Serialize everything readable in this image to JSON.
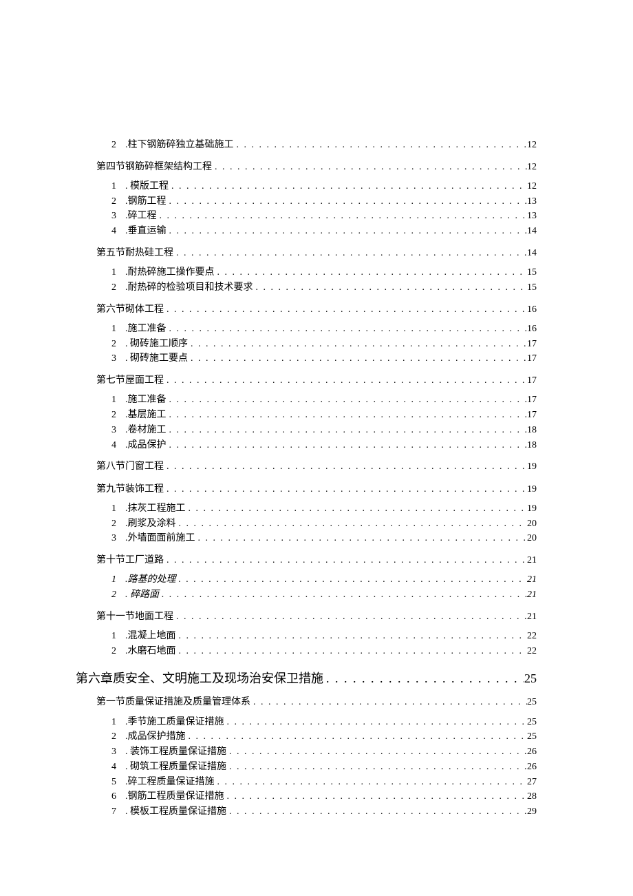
{
  "toc": [
    {
      "level": "item",
      "indent": 1,
      "num": "2",
      "label": ".柱下钢筋碎独立基础施工",
      "page": "12",
      "italic": false
    },
    {
      "level": "section",
      "indent": 0,
      "num": "",
      "label": "第四节钢筋碎框架结构工程",
      "page": "12",
      "italic": false
    },
    {
      "level": "item",
      "indent": 1,
      "num": "1",
      "label": ". 模版工程",
      "page": "12",
      "italic": false
    },
    {
      "level": "item",
      "indent": 1,
      "num": "2",
      "label": ".钢筋工程",
      "page": "13",
      "italic": false
    },
    {
      "level": "item",
      "indent": 1,
      "num": "3",
      "label": ".碎工程",
      "page": "13",
      "italic": false
    },
    {
      "level": "item",
      "indent": 1,
      "num": "4",
      "label": ".垂直运输",
      "page": "14",
      "italic": false
    },
    {
      "level": "section",
      "indent": 0,
      "num": "",
      "label": "第五节耐热硅工程",
      "page": "14",
      "italic": false
    },
    {
      "level": "item",
      "indent": 1,
      "num": "1",
      "label": ".耐热碎施工操作要点",
      "page": "15",
      "italic": false
    },
    {
      "level": "item",
      "indent": 1,
      "num": "2",
      "label": ".耐热碎的检验项目和技术要求",
      "page": "15",
      "italic": false
    },
    {
      "level": "section",
      "indent": 0,
      "num": "",
      "label": "第六节砌体工程",
      "page": "16",
      "italic": false
    },
    {
      "level": "item",
      "indent": 1,
      "num": "1",
      "label": ".施工准备",
      "page": "16",
      "italic": false
    },
    {
      "level": "item",
      "indent": 1,
      "num": "2",
      "label": ". 砌砖施工顺序",
      "page": "17",
      "italic": false
    },
    {
      "level": "item",
      "indent": 1,
      "num": "3",
      "label": ". 砌砖施工要点",
      "page": "17",
      "italic": false
    },
    {
      "level": "section",
      "indent": 0,
      "num": "",
      "label": "第七节屋面工程",
      "page": "17",
      "italic": false
    },
    {
      "level": "item",
      "indent": 1,
      "num": "1",
      "label": ".施工准备",
      "page": "17",
      "italic": false
    },
    {
      "level": "item",
      "indent": 1,
      "num": "2",
      "label": ".基层施工",
      "page": "17",
      "italic": false
    },
    {
      "level": "item",
      "indent": 1,
      "num": "3",
      "label": ".卷材施工",
      "page": "18",
      "italic": false
    },
    {
      "level": "item",
      "indent": 1,
      "num": "4",
      "label": ".成品保护",
      "page": "18",
      "italic": false
    },
    {
      "level": "section",
      "indent": 0,
      "num": "",
      "label": "第八节门窗工程",
      "page": "19",
      "italic": false
    },
    {
      "level": "section",
      "indent": 0,
      "num": "",
      "label": "第九节装饰工程",
      "page": "19",
      "italic": false
    },
    {
      "level": "item",
      "indent": 1,
      "num": "1",
      "label": ".抹灰工程施工",
      "page": "19",
      "italic": false
    },
    {
      "level": "item",
      "indent": 1,
      "num": "2",
      "label": ".刷浆及涂料",
      "page": "20",
      "italic": false
    },
    {
      "level": "item",
      "indent": 1,
      "num": "3",
      "label": ".外墙面面前施工",
      "page": "20",
      "italic": false
    },
    {
      "level": "section",
      "indent": 0,
      "num": "",
      "label": "第十节工厂道路",
      "page": "21",
      "italic": false
    },
    {
      "level": "item",
      "indent": 1,
      "num": "1",
      "label": ".路基的处理",
      "page": "21",
      "italic": true
    },
    {
      "level": "item",
      "indent": 1,
      "num": "2",
      "label": ". 碎路面",
      "page": "21",
      "italic": true
    },
    {
      "level": "section",
      "indent": 0,
      "num": "",
      "label": "第十一节地面工程",
      "page": "21",
      "italic": false
    },
    {
      "level": "item",
      "indent": 1,
      "num": "1",
      "label": ".混凝上地面",
      "page": "22",
      "italic": false
    },
    {
      "level": "item",
      "indent": 1,
      "num": "2",
      "label": ".水磨石地面",
      "page": "22",
      "italic": false
    },
    {
      "level": "chapter",
      "indent": -1,
      "num": "",
      "label": "第六章质安全、文明施工及现场治安保卫措施",
      "page": "25",
      "italic": false
    },
    {
      "level": "section",
      "indent": 0,
      "num": "",
      "label": "第一节质量保证措施及质量管理体系",
      "page": "25",
      "italic": false
    },
    {
      "level": "item",
      "indent": 1,
      "num": "1",
      "label": ".季节施工质量保证措施",
      "page": "25",
      "italic": false
    },
    {
      "level": "item",
      "indent": 1,
      "num": "2",
      "label": ".成品保护措施",
      "page": "25",
      "italic": false
    },
    {
      "level": "item",
      "indent": 1,
      "num": "3",
      "label": ". 装饰工程质量保证措施",
      "page": "26",
      "italic": false
    },
    {
      "level": "item",
      "indent": 1,
      "num": "4",
      "label": ". 砌筑工程质量保证措施",
      "page": "26",
      "italic": false
    },
    {
      "level": "item",
      "indent": 1,
      "num": "5",
      "label": ".碎工程质量保证措施",
      "page": "27",
      "italic": false
    },
    {
      "level": "item",
      "indent": 1,
      "num": "6",
      "label": ".钢筋工程质量保证措施",
      "page": "28",
      "italic": false
    },
    {
      "level": "item",
      "indent": 1,
      "num": "7",
      "label": ". 模板工程质量保证措施",
      "page": "29",
      "italic": false
    }
  ],
  "dot_chars": {
    "section": ". . . . . . . . . . . . . . . . . . . . . . . . . . . . . . . . . . . . . . . . . . . . . . . . . . . . . . . . . . . . . . . . . . . . . . . . . . . . . . . .",
    "item": ". . . . . . . . . . . . . . . . . . . . . . . . . . . . . . . . . . . . . . . . . . . . . . . . . . . . . . . . . . . . . . . . . . . . . . . . . . . . . . . .",
    "chapter": ". . . . . . . . . . . . . . . . . . . . . . . . . . . . . . . . . . . . . . . ."
  }
}
